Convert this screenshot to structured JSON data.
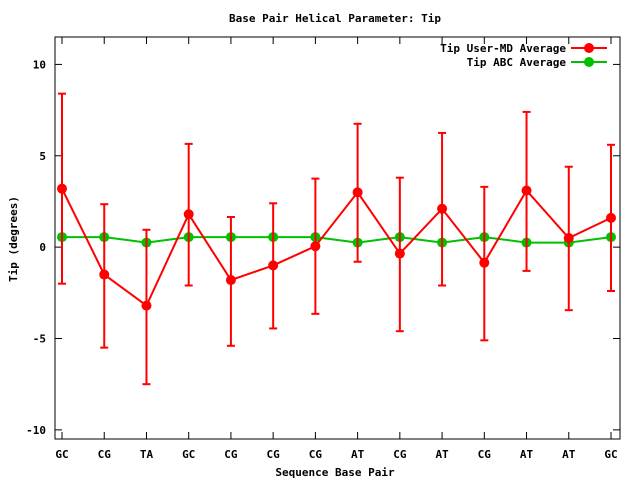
{
  "chart_data": {
    "type": "line",
    "title": "Base Pair Helical Parameter: Tip",
    "xlabel": "Sequence Base Pair",
    "ylabel": "Tip (degrees)",
    "categories": [
      "GC",
      "CG",
      "TA",
      "GC",
      "CG",
      "CG",
      "CG",
      "AT",
      "CG",
      "AT",
      "CG",
      "AT",
      "AT",
      "GC"
    ],
    "ylim": [
      -10.5,
      11.5
    ],
    "yticks": [
      -10,
      -5,
      0,
      5,
      10
    ],
    "grid": false,
    "legend_position": "top-right",
    "series": [
      {
        "name": "Tip User-MD Average",
        "color": "#ff0000",
        "values": [
          3.2,
          -1.5,
          -3.2,
          1.8,
          -1.8,
          -1.0,
          0.05,
          3.0,
          -0.35,
          2.1,
          -0.85,
          3.1,
          0.5,
          1.6
        ],
        "error_low": [
          -2.0,
          -5.5,
          -7.5,
          -2.1,
          -5.4,
          -4.45,
          -3.65,
          -0.8,
          -4.6,
          -2.1,
          -5.1,
          -1.3,
          -3.45,
          -2.4
        ],
        "error_high": [
          8.4,
          2.35,
          0.95,
          5.65,
          1.65,
          2.4,
          3.75,
          6.75,
          3.8,
          6.25,
          3.3,
          7.4,
          4.4,
          5.6
        ]
      },
      {
        "name": "Tip ABC Average",
        "color": "#00c000",
        "values": [
          0.55,
          0.55,
          0.25,
          0.55,
          0.55,
          0.55,
          0.55,
          0.25,
          0.55,
          0.25,
          0.55,
          0.25,
          0.25,
          0.55
        ]
      }
    ]
  }
}
